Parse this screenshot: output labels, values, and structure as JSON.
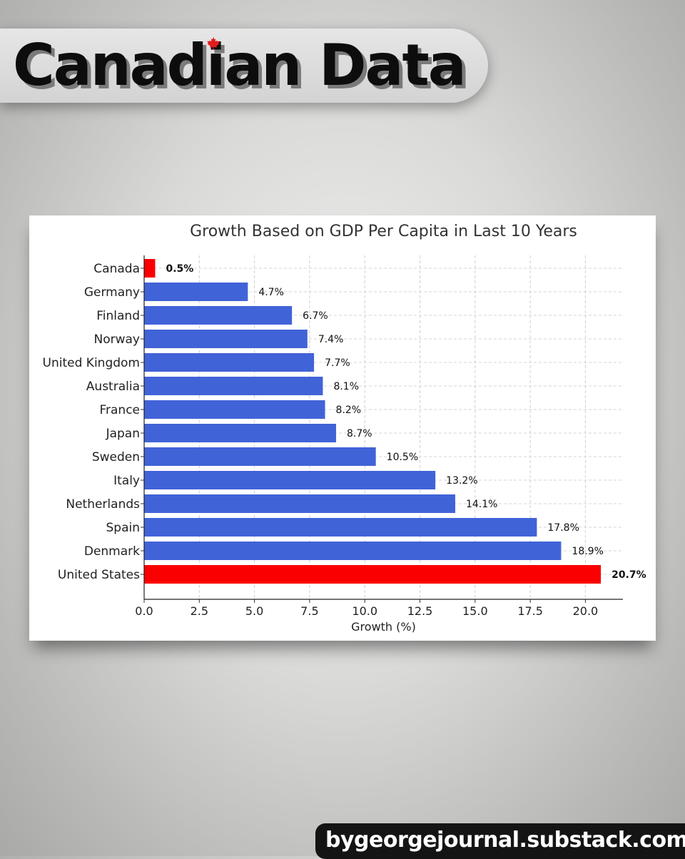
{
  "banner": {
    "title": "Canadian Data"
  },
  "footer": {
    "site": "bygeorgejournal.substack.com"
  },
  "colors": {
    "default_bar": "#4163d8",
    "highlight_bar": "#fb0000",
    "maple_leaf": "#e11d1d"
  },
  "icons": {
    "maple": "maple-leaf-icon"
  },
  "chart_data": {
    "type": "bar",
    "orientation": "horizontal",
    "title": "Growth Based on GDP Per Capita in Last 10 Years",
    "xlabel": "Growth (%)",
    "ylabel": "",
    "xlim": [
      0,
      21.7
    ],
    "xticks": [
      0.0,
      2.5,
      5.0,
      7.5,
      10.0,
      12.5,
      15.0,
      17.5,
      20.0
    ],
    "grid": true,
    "categories": [
      "Canada",
      "Germany",
      "Finland",
      "Norway",
      "United Kingdom",
      "Australia",
      "France",
      "Japan",
      "Sweden",
      "Italy",
      "Netherlands",
      "Spain",
      "Denmark",
      "United States"
    ],
    "values": [
      0.5,
      4.7,
      6.7,
      7.4,
      7.7,
      8.1,
      8.2,
      8.7,
      10.5,
      13.2,
      14.1,
      17.8,
      18.9,
      20.7
    ],
    "data_labels": [
      "0.5%",
      "4.7%",
      "6.7%",
      "7.4%",
      "7.7%",
      "8.1%",
      "8.2%",
      "8.7%",
      "10.5%",
      "13.2%",
      "14.1%",
      "17.8%",
      "18.9%",
      "20.7%"
    ],
    "highlighted": [
      "Canada",
      "United States"
    ]
  }
}
